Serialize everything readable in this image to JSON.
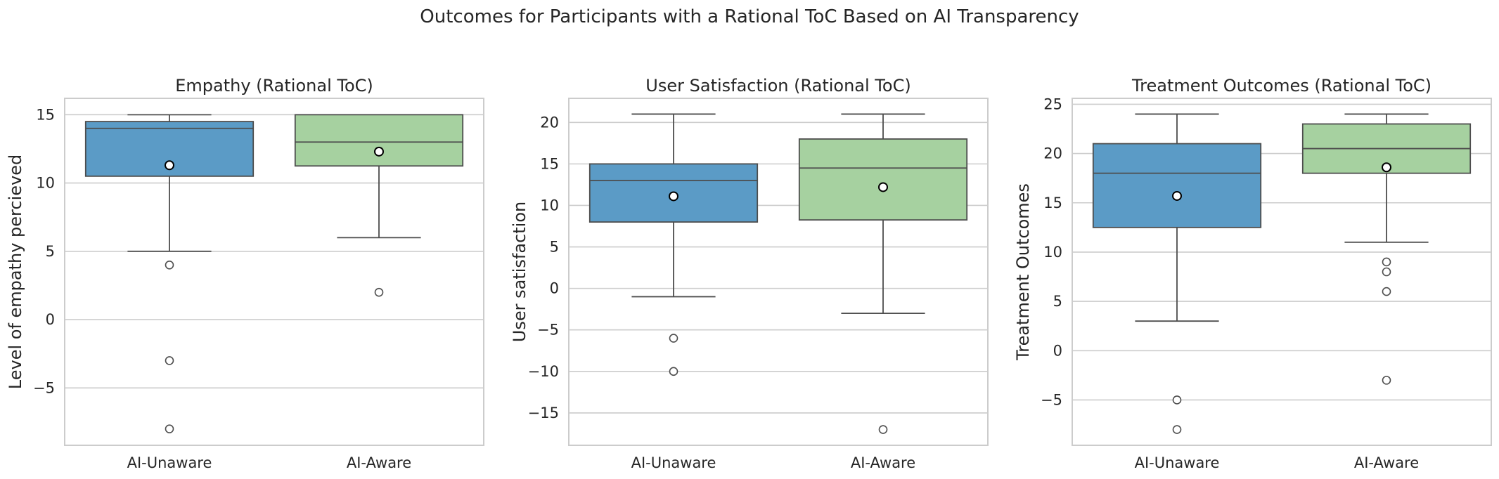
{
  "figure": {
    "title": "Outcomes for Participants with a Rational ToC Based on AI Transparency"
  },
  "colors": {
    "ai_unaware": "#5b9bc6",
    "ai_aware": "#a6d1a0",
    "line": "#4d4d4d",
    "grid": "#cccccc"
  },
  "chart_data": [
    {
      "type": "box",
      "title": "Empathy (Rational ToC)",
      "ylabel": "Level of empathy percieved",
      "categories": [
        "AI-Unaware",
        "AI-Aware"
      ],
      "ylim": [
        -9.2,
        16.2
      ],
      "yticks": [
        -5,
        0,
        5,
        10,
        15
      ],
      "grid": true,
      "boxes": [
        {
          "category": "AI-Unaware",
          "q1": 10.5,
          "median": 14,
          "q3": 14.5,
          "whisker_low": 5,
          "whisker_high": 15,
          "mean": 11.3,
          "fliers": [
            4,
            -3,
            -8
          ]
        },
        {
          "category": "AI-Aware",
          "q1": 11.25,
          "median": 13,
          "q3": 15,
          "whisker_low": 6,
          "whisker_high": 15,
          "mean": 12.3,
          "fliers": [
            2
          ]
        }
      ]
    },
    {
      "type": "box",
      "title": "User Satisfaction (Rational ToC)",
      "ylabel": "User satisfaction",
      "categories": [
        "AI-Unaware",
        "AI-Aware"
      ],
      "ylim": [
        -18.9,
        22.9
      ],
      "yticks": [
        -15,
        -10,
        -5,
        0,
        5,
        10,
        15,
        20
      ],
      "grid": true,
      "boxes": [
        {
          "category": "AI-Unaware",
          "q1": 8,
          "median": 13,
          "q3": 15,
          "whisker_low": -1,
          "whisker_high": 21,
          "mean": 11.1,
          "fliers": [
            -6,
            -10
          ]
        },
        {
          "category": "AI-Aware",
          "q1": 8.25,
          "median": 14.5,
          "q3": 18,
          "whisker_low": -3,
          "whisker_high": 21,
          "mean": 12.2,
          "fliers": [
            -17
          ]
        }
      ]
    },
    {
      "type": "box",
      "title": "Treatment Outcomes (Rational ToC)",
      "ylabel": "Treatment Outcomes",
      "categories": [
        "AI-Unaware",
        "AI-Aware"
      ],
      "ylim": [
        -9.6,
        25.6
      ],
      "yticks": [
        -5,
        0,
        5,
        10,
        15,
        20,
        25
      ],
      "grid": true,
      "boxes": [
        {
          "category": "AI-Unaware",
          "q1": 12.5,
          "median": 18,
          "q3": 21,
          "whisker_low": 3,
          "whisker_high": 24,
          "mean": 15.7,
          "fliers": [
            -5,
            -8
          ]
        },
        {
          "category": "AI-Aware",
          "q1": 18,
          "median": 20.5,
          "q3": 23,
          "whisker_low": 11,
          "whisker_high": 24,
          "mean": 18.6,
          "fliers": [
            9,
            8,
            6,
            -3
          ]
        }
      ]
    }
  ]
}
